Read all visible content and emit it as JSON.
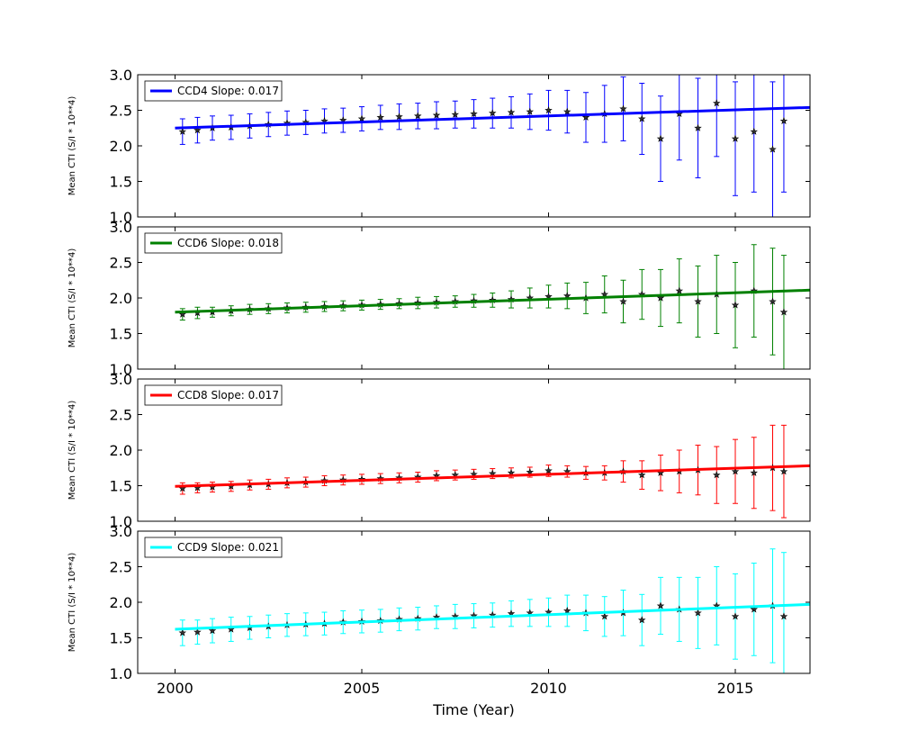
{
  "figure": {
    "xlabel": "Time (Year)",
    "xlim": [
      1999,
      2017
    ],
    "xticks": [
      2000,
      2005,
      2010,
      2015
    ],
    "xtick_labels": [
      "2000",
      "2005",
      "2010",
      "2015"
    ]
  },
  "chart_data": [
    {
      "type": "scatter",
      "title": "",
      "ylabel": "Mean CTI (S/I * 10**4)",
      "ylim": [
        1.0,
        3.0
      ],
      "yticks": [
        1.0,
        1.5,
        2.0,
        2.5,
        3.0
      ],
      "ytick_labels": [
        "1.0",
        "1.5",
        "2.0",
        "2.5",
        "3.0"
      ],
      "legend": {
        "label": "CCD4 Slope: 0.017",
        "position": "upper-left"
      },
      "color": "#0000ff",
      "fit": {
        "x": [
          2000.0,
          2017.0
        ],
        "y": [
          2.25,
          2.54
        ]
      },
      "series": [
        {
          "name": "CCD4 Slope: 0.017",
          "x": [
            2000.2,
            2000.6,
            2001.0,
            2001.5,
            2002.0,
            2002.5,
            2003.0,
            2003.5,
            2004.0,
            2004.5,
            2005.0,
            2005.5,
            2006.0,
            2006.5,
            2007.0,
            2007.5,
            2008.0,
            2008.5,
            2009.0,
            2009.5,
            2010.0,
            2010.5,
            2011.0,
            2011.5,
            2012.0,
            2012.5,
            2013.0,
            2013.5,
            2014.0,
            2014.5,
            2015.0,
            2015.5,
            2016.0,
            2016.3
          ],
          "y": [
            2.2,
            2.22,
            2.25,
            2.26,
            2.28,
            2.3,
            2.32,
            2.33,
            2.35,
            2.36,
            2.38,
            2.4,
            2.41,
            2.42,
            2.43,
            2.44,
            2.45,
            2.46,
            2.47,
            2.48,
            2.5,
            2.48,
            2.4,
            2.45,
            2.52,
            2.38,
            2.1,
            2.45,
            2.25,
            2.6,
            2.1,
            2.2,
            1.95,
            2.35
          ],
          "err": [
            0.18,
            0.18,
            0.17,
            0.17,
            0.17,
            0.17,
            0.17,
            0.17,
            0.17,
            0.17,
            0.17,
            0.17,
            0.18,
            0.18,
            0.19,
            0.19,
            0.2,
            0.21,
            0.22,
            0.25,
            0.28,
            0.3,
            0.35,
            0.4,
            0.45,
            0.5,
            0.6,
            0.65,
            0.7,
            0.75,
            0.8,
            0.85,
            0.95,
            1.0
          ]
        }
      ]
    },
    {
      "type": "scatter",
      "title": "",
      "ylabel": "Mean CTI (S/I * 10**4)",
      "ylim": [
        1.0,
        3.0
      ],
      "yticks": [
        1.0,
        1.5,
        2.0,
        2.5,
        3.0
      ],
      "ytick_labels": [
        "1.0",
        "1.5",
        "2.0",
        "2.5",
        "3.0"
      ],
      "legend": {
        "label": "CCD6 Slope: 0.018",
        "position": "upper-left"
      },
      "color": "#008000",
      "fit": {
        "x": [
          2000.0,
          2017.0
        ],
        "y": [
          1.8,
          2.11
        ]
      },
      "series": [
        {
          "name": "CCD6 Slope: 0.018",
          "x": [
            2000.2,
            2000.6,
            2001.0,
            2001.5,
            2002.0,
            2002.5,
            2003.0,
            2003.5,
            2004.0,
            2004.5,
            2005.0,
            2005.5,
            2006.0,
            2006.5,
            2007.0,
            2007.5,
            2008.0,
            2008.5,
            2009.0,
            2009.5,
            2010.0,
            2010.5,
            2011.0,
            2011.5,
            2012.0,
            2012.5,
            2013.0,
            2013.5,
            2014.0,
            2014.5,
            2015.0,
            2015.5,
            2016.0,
            2016.3
          ],
          "y": [
            1.77,
            1.79,
            1.8,
            1.82,
            1.84,
            1.85,
            1.86,
            1.87,
            1.88,
            1.89,
            1.9,
            1.91,
            1.92,
            1.93,
            1.94,
            1.95,
            1.96,
            1.97,
            1.98,
            2.0,
            2.02,
            2.03,
            2.0,
            2.05,
            1.95,
            2.05,
            2.0,
            2.1,
            1.95,
            2.05,
            1.9,
            2.1,
            1.95,
            1.8
          ],
          "err": [
            0.08,
            0.08,
            0.07,
            0.07,
            0.07,
            0.07,
            0.07,
            0.07,
            0.07,
            0.07,
            0.07,
            0.07,
            0.07,
            0.08,
            0.08,
            0.08,
            0.09,
            0.1,
            0.12,
            0.14,
            0.16,
            0.18,
            0.22,
            0.26,
            0.3,
            0.35,
            0.4,
            0.45,
            0.5,
            0.55,
            0.6,
            0.65,
            0.75,
            0.8
          ]
        }
      ]
    },
    {
      "type": "scatter",
      "title": "",
      "ylabel": "Mean CTI (S/I * 10**4)",
      "ylim": [
        1.0,
        3.0
      ],
      "yticks": [
        1.0,
        1.5,
        2.0,
        2.5,
        3.0
      ],
      "ytick_labels": [
        "1.0",
        "1.5",
        "2.0",
        "2.5",
        "3.0"
      ],
      "legend": {
        "label": "CCD8 Slope: 0.017",
        "position": "upper-left"
      },
      "color": "#ff0000",
      "fit": {
        "x": [
          2000.0,
          2017.0
        ],
        "y": [
          1.49,
          1.78
        ]
      },
      "series": [
        {
          "name": "CCD8 Slope: 0.017",
          "x": [
            2000.2,
            2000.6,
            2001.0,
            2001.5,
            2002.0,
            2002.5,
            2003.0,
            2003.5,
            2004.0,
            2004.5,
            2005.0,
            2005.5,
            2006.0,
            2006.5,
            2007.0,
            2007.5,
            2008.0,
            2008.5,
            2009.0,
            2009.5,
            2010.0,
            2010.5,
            2011.0,
            2011.5,
            2012.0,
            2012.5,
            2013.0,
            2013.5,
            2014.0,
            2014.5,
            2015.0,
            2015.5,
            2016.0,
            2016.3
          ],
          "y": [
            1.46,
            1.47,
            1.48,
            1.49,
            1.51,
            1.52,
            1.54,
            1.55,
            1.57,
            1.58,
            1.59,
            1.6,
            1.61,
            1.62,
            1.64,
            1.65,
            1.66,
            1.67,
            1.68,
            1.69,
            1.71,
            1.7,
            1.68,
            1.68,
            1.7,
            1.65,
            1.68,
            1.7,
            1.72,
            1.65,
            1.7,
            1.68,
            1.75,
            1.7
          ],
          "err": [
            0.08,
            0.07,
            0.07,
            0.07,
            0.07,
            0.07,
            0.07,
            0.07,
            0.07,
            0.07,
            0.07,
            0.07,
            0.07,
            0.07,
            0.07,
            0.07,
            0.07,
            0.07,
            0.07,
            0.07,
            0.08,
            0.08,
            0.09,
            0.1,
            0.15,
            0.2,
            0.25,
            0.3,
            0.35,
            0.4,
            0.45,
            0.5,
            0.6,
            0.65
          ]
        }
      ]
    },
    {
      "type": "scatter",
      "title": "",
      "ylabel": "Mean CTI (S/I * 10**4)",
      "ylim": [
        1.0,
        3.0
      ],
      "yticks": [
        1.0,
        1.5,
        2.0,
        2.5,
        3.0
      ],
      "ytick_labels": [
        "1.0",
        "1.5",
        "2.0",
        "2.5",
        "3.0"
      ],
      "legend": {
        "label": "CCD9 Slope: 0.021",
        "position": "upper-left"
      },
      "color": "#00ffff",
      "fit": {
        "x": [
          2000.0,
          2017.0
        ],
        "y": [
          1.62,
          1.97
        ]
      },
      "series": [
        {
          "name": "CCD9 Slope: 0.021",
          "x": [
            2000.2,
            2000.6,
            2001.0,
            2001.5,
            2002.0,
            2002.5,
            2003.0,
            2003.5,
            2004.0,
            2004.5,
            2005.0,
            2005.5,
            2006.0,
            2006.5,
            2007.0,
            2007.5,
            2008.0,
            2008.5,
            2009.0,
            2009.5,
            2010.0,
            2010.5,
            2011.0,
            2011.5,
            2012.0,
            2012.5,
            2013.0,
            2013.5,
            2014.0,
            2014.5,
            2015.0,
            2015.5,
            2016.0,
            2016.3
          ],
          "y": [
            1.57,
            1.58,
            1.6,
            1.62,
            1.64,
            1.66,
            1.68,
            1.69,
            1.7,
            1.72,
            1.73,
            1.74,
            1.76,
            1.77,
            1.79,
            1.8,
            1.81,
            1.82,
            1.84,
            1.85,
            1.86,
            1.88,
            1.85,
            1.8,
            1.85,
            1.75,
            1.95,
            1.9,
            1.85,
            1.95,
            1.8,
            1.9,
            1.95,
            1.8
          ],
          "err": [
            0.18,
            0.17,
            0.17,
            0.17,
            0.16,
            0.16,
            0.16,
            0.16,
            0.16,
            0.16,
            0.16,
            0.16,
            0.16,
            0.16,
            0.16,
            0.17,
            0.17,
            0.17,
            0.18,
            0.19,
            0.2,
            0.22,
            0.25,
            0.28,
            0.32,
            0.36,
            0.4,
            0.45,
            0.5,
            0.55,
            0.6,
            0.65,
            0.8,
            0.9
          ]
        }
      ]
    }
  ]
}
